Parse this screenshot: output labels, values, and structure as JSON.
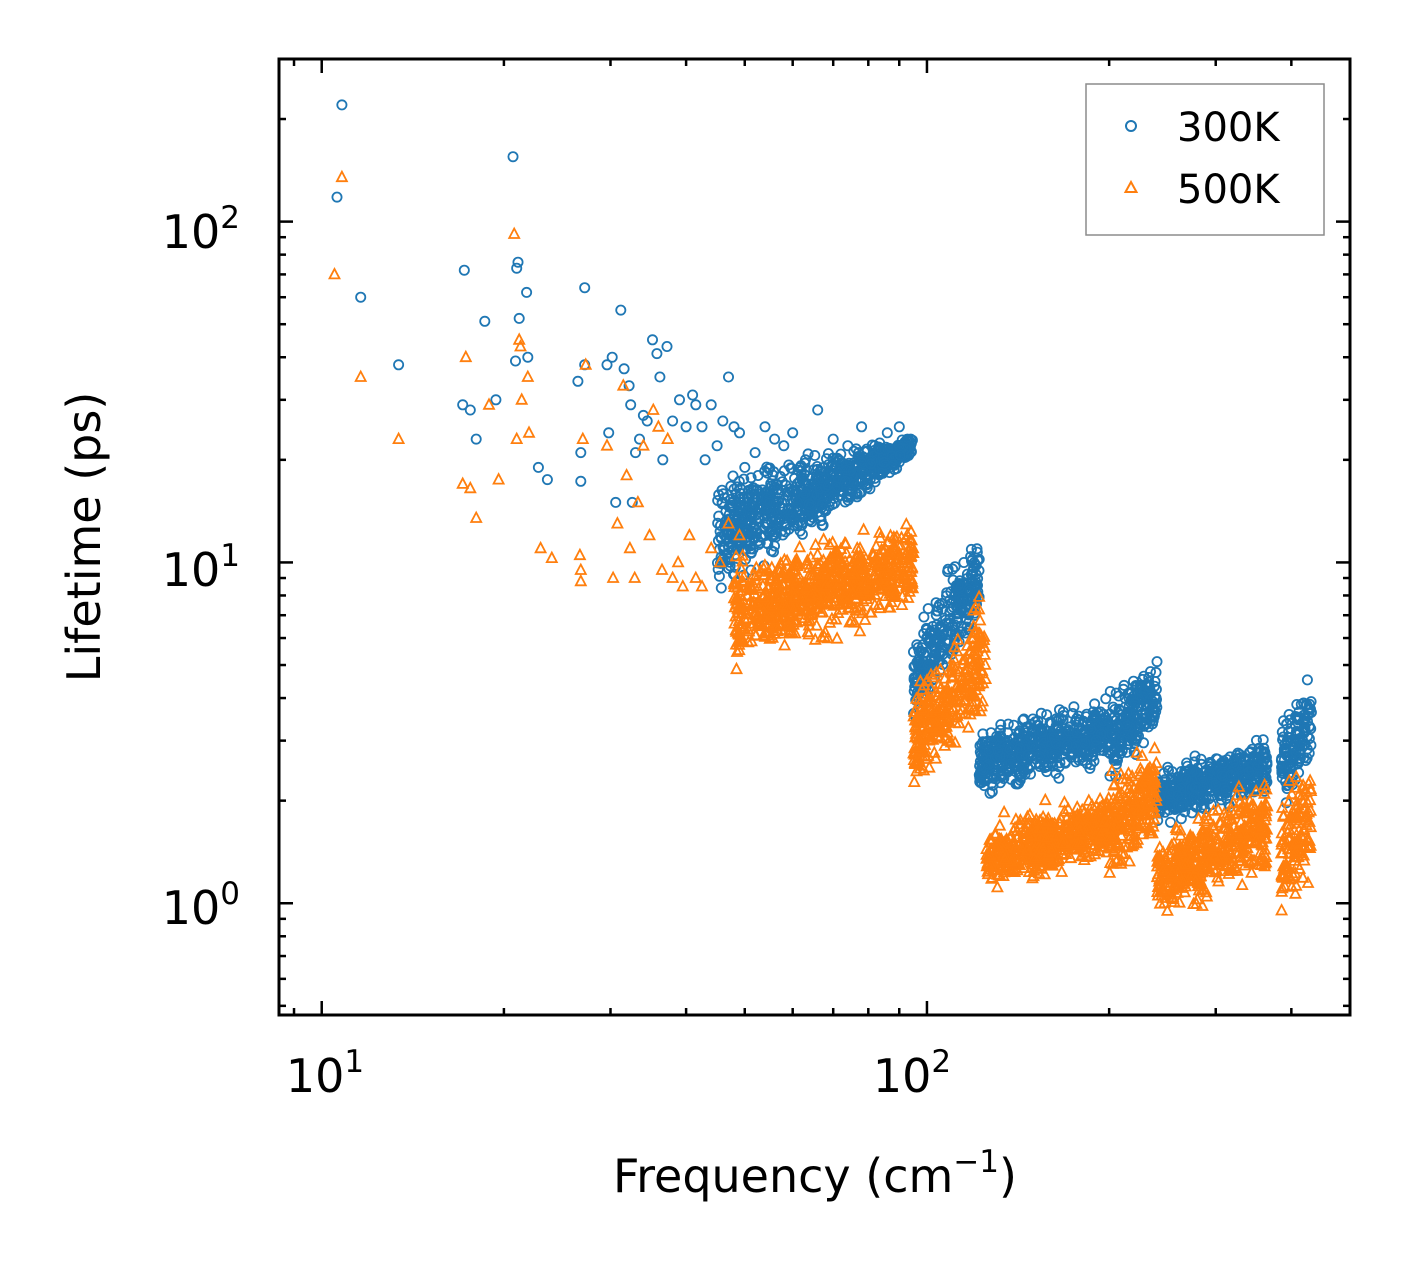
{
  "chart_data": {
    "type": "scatter",
    "xscale": "log",
    "yscale": "log",
    "xlim": [
      8.5,
      500
    ],
    "ylim": [
      0.47,
      300
    ],
    "xlabel": "Frequency (cm",
    "xlabel_sup": "−1",
    "xlabel_close": ")",
    "ylabel": "Lifetime (ps)",
    "x_ticks": [
      {
        "base": "10",
        "exp": "1",
        "value": 10
      },
      {
        "base": "10",
        "exp": "2",
        "value": 100
      }
    ],
    "y_ticks": [
      {
        "base": "10",
        "exp": "0",
        "value": 1
      },
      {
        "base": "10",
        "exp": "1",
        "value": 10
      },
      {
        "base": "10",
        "exp": "2",
        "value": 100
      }
    ],
    "legend_position": "top-right",
    "series": [
      {
        "name": "300K",
        "marker": "circle",
        "color": "#1f77b4",
        "points": [
          [
            10.8,
            220
          ],
          [
            10.6,
            118
          ],
          [
            11.6,
            60
          ],
          [
            13.4,
            38
          ],
          [
            17.2,
            72
          ],
          [
            17.1,
            29
          ],
          [
            17.6,
            28
          ],
          [
            18.0,
            23
          ],
          [
            18.6,
            51
          ],
          [
            19.4,
            30
          ],
          [
            20.7,
            155
          ],
          [
            21.1,
            76
          ],
          [
            21.0,
            73
          ],
          [
            21.2,
            52
          ],
          [
            20.9,
            39
          ],
          [
            21.8,
            62
          ],
          [
            21.9,
            40
          ],
          [
            22.8,
            19
          ],
          [
            23.6,
            17.5
          ],
          [
            26.5,
            34
          ],
          [
            26.8,
            21
          ],
          [
            26.8,
            17.3
          ],
          [
            27.2,
            64
          ],
          [
            27.2,
            38
          ],
          [
            29.6,
            38
          ],
          [
            29.8,
            24
          ],
          [
            30.2,
            40
          ],
          [
            30.6,
            15
          ],
          [
            31.2,
            55
          ],
          [
            31.6,
            37
          ],
          [
            32.2,
            33
          ],
          [
            32.4,
            29
          ],
          [
            32.6,
            15
          ],
          [
            33.0,
            21
          ],
          [
            33.5,
            23
          ],
          [
            34.0,
            27
          ],
          [
            34.5,
            26
          ],
          [
            35.2,
            45
          ],
          [
            35.8,
            41
          ],
          [
            36.2,
            35
          ],
          [
            36.6,
            20
          ],
          [
            37.2,
            43
          ],
          [
            38.0,
            26
          ],
          [
            39.0,
            30
          ],
          [
            40.0,
            25
          ],
          [
            41.0,
            31
          ],
          [
            41.5,
            29
          ],
          [
            42.5,
            25
          ],
          [
            43.0,
            20
          ],
          [
            44.0,
            29
          ],
          [
            45.0,
            22
          ],
          [
            46.0,
            26
          ],
          [
            47.0,
            35
          ],
          [
            48.0,
            25
          ],
          [
            49.0,
            24
          ],
          [
            50.0,
            19
          ],
          [
            52.0,
            21
          ],
          [
            54.0,
            25
          ],
          [
            56.0,
            23
          ],
          [
            58.0,
            22
          ],
          [
            60.0,
            24
          ],
          [
            63.0,
            20
          ],
          [
            66.0,
            28
          ],
          [
            70.0,
            23
          ],
          [
            74.0,
            22
          ],
          [
            78.0,
            25
          ],
          [
            82.0,
            22
          ],
          [
            86.0,
            24
          ],
          [
            90.0,
            25
          ],
          [
            94.0,
            23
          ]
        ]
      },
      {
        "name": "500K",
        "marker": "triangle",
        "color": "#ff7f0e",
        "points": [
          [
            10.8,
            135
          ],
          [
            10.5,
            70
          ],
          [
            11.6,
            35
          ],
          [
            13.4,
            23
          ],
          [
            17.1,
            17
          ],
          [
            17.3,
            40
          ],
          [
            17.6,
            16.5
          ],
          [
            18.0,
            13.5
          ],
          [
            18.9,
            29
          ],
          [
            19.6,
            17.5
          ],
          [
            20.8,
            92
          ],
          [
            21.2,
            45
          ],
          [
            21.3,
            43
          ],
          [
            21.4,
            30
          ],
          [
            21.0,
            23
          ],
          [
            22.0,
            24
          ],
          [
            21.9,
            35
          ],
          [
            23.0,
            11
          ],
          [
            24.0,
            10.3
          ],
          [
            26.7,
            10.5
          ],
          [
            26.8,
            9.5
          ],
          [
            26.8,
            8.8
          ],
          [
            27.0,
            23
          ],
          [
            27.3,
            38
          ],
          [
            29.6,
            22
          ],
          [
            30.3,
            9
          ],
          [
            30.8,
            13
          ],
          [
            31.5,
            33
          ],
          [
            31.9,
            18
          ],
          [
            32.3,
            11
          ],
          [
            32.9,
            9
          ],
          [
            33.3,
            15
          ],
          [
            34.0,
            22
          ],
          [
            34.8,
            12
          ],
          [
            35.3,
            28
          ],
          [
            36.0,
            25
          ],
          [
            36.5,
            9.5
          ],
          [
            37.3,
            23
          ],
          [
            38.0,
            9
          ],
          [
            38.8,
            10
          ],
          [
            39.5,
            8.5
          ],
          [
            40.5,
            12
          ],
          [
            41.5,
            9
          ],
          [
            42.5,
            8.5
          ],
          [
            44.0,
            11
          ],
          [
            45.5,
            10
          ],
          [
            47.0,
            13
          ],
          [
            49.0,
            12
          ]
        ]
      }
    ],
    "dense_regions": [
      {
        "series": "300K",
        "x_range": [
          45,
          95
        ],
        "y_low": [
          7,
          20
        ],
        "y_high": [
          20,
          24
        ]
      },
      {
        "series": "300K",
        "x_range": [
          95,
          122
        ],
        "y_low": [
          3,
          6
        ],
        "y_high": [
          7,
          14
        ]
      },
      {
        "series": "300K",
        "x_range": [
          122,
          200
        ],
        "y_low": [
          1.9,
          2.5
        ],
        "y_high": [
          3.5,
          4.2
        ]
      },
      {
        "series": "300K",
        "x_range": [
          200,
          240
        ],
        "y_low": [
          2.0,
          3.0
        ],
        "y_high": [
          4.5,
          5.8
        ]
      },
      {
        "series": "300K",
        "x_range": [
          240,
          365
        ],
        "y_low": [
          1.6,
          2.0
        ],
        "y_high": [
          2.6,
          3.2
        ]
      },
      {
        "series": "300K",
        "x_range": [
          385,
          432
        ],
        "y_low": [
          1.5,
          2.5
        ],
        "y_high": [
          4.0,
          5.0
        ]
      },
      {
        "series": "500K",
        "x_range": [
          48,
          95
        ],
        "y_low": [
          4.5,
          7
        ],
        "y_high": [
          11,
          14
        ]
      },
      {
        "series": "500K",
        "x_range": [
          95,
          125
        ],
        "y_low": [
          2.0,
          3.0
        ],
        "y_high": [
          4.5,
          9
        ]
      },
      {
        "series": "500K",
        "x_range": [
          125,
          200
        ],
        "y_low": [
          1.0,
          1.3
        ],
        "y_high": [
          1.8,
          2.3
        ]
      },
      {
        "series": "500K",
        "x_range": [
          200,
          240
        ],
        "y_low": [
          1.1,
          1.4
        ],
        "y_high": [
          2.5,
          3.4
        ]
      },
      {
        "series": "500K",
        "x_range": [
          240,
          365
        ],
        "y_low": [
          0.85,
          1.1
        ],
        "y_high": [
          1.6,
          2.6
        ]
      },
      {
        "series": "500K",
        "x_range": [
          385,
          432
        ],
        "y_low": [
          0.8,
          1.0
        ],
        "y_high": [
          2.4,
          3.0
        ]
      }
    ]
  }
}
